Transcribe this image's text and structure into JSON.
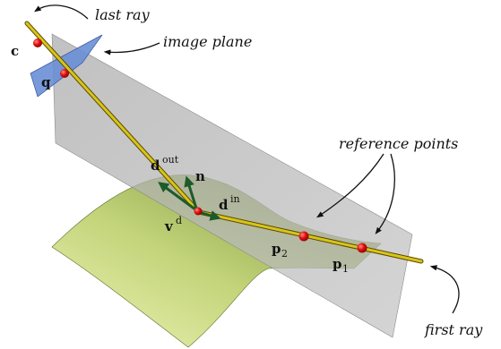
{
  "annotations": {
    "last_ray": "last ray",
    "image_plane": "image plane",
    "reference_points": "reference points",
    "first_ray": "first ray"
  },
  "symbols": {
    "camera_center": "c",
    "image_point": "q",
    "surface_point": "v",
    "surface_point_sup": "d",
    "normal": "n",
    "dir_out": "d",
    "dir_out_sup": "out",
    "dir_in": "d",
    "dir_in_sup": "in",
    "ref_point_2": "p",
    "ref_point_2_sub": "2",
    "ref_point_1": "p",
    "ref_point_1_sub": "1"
  },
  "colors": {
    "ray": "#c8b400",
    "ray_dark": "#5a4a00",
    "reference_plane": "#b8b8b8",
    "image_plane": "#6a8fd6",
    "surface_light": "#e2ec9a",
    "surface_dark": "#7f9a3a",
    "arrow_green": "#1d5a2a",
    "point_red": "#e01010"
  }
}
